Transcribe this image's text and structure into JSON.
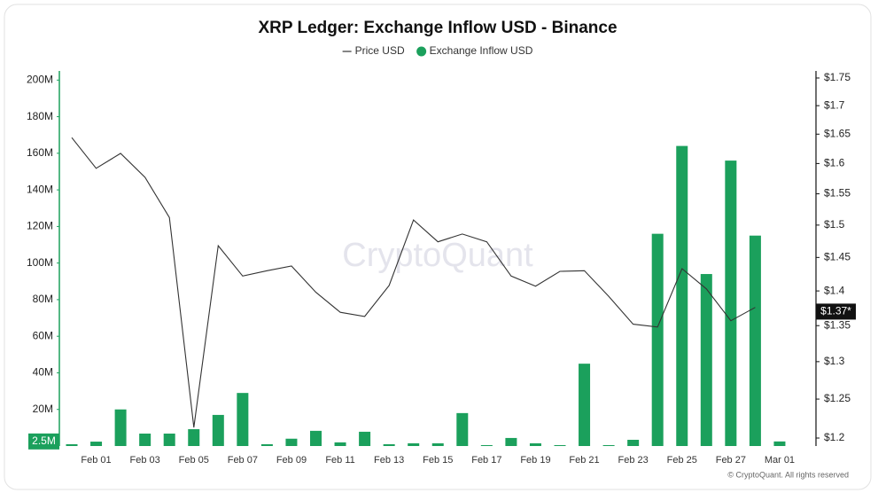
{
  "chart_data": {
    "type": "bar",
    "title": "XRP Ledger: Exchange Inflow USD - Binance",
    "watermark": "CryptoQuant",
    "footer": "© CryptoQuant. All rights reserved",
    "categories": [
      null,
      "Feb 01",
      null,
      "Feb 03",
      null,
      "Feb 05",
      null,
      "Feb 07",
      null,
      "Feb 09",
      null,
      "Feb 11",
      null,
      "Feb 13",
      null,
      "Feb 15",
      null,
      "Feb 17",
      null,
      "Feb 19",
      null,
      "Feb 21",
      null,
      "Feb 23",
      null,
      "Feb 25",
      null,
      "Feb 27",
      null,
      "Mar 01"
    ],
    "series": [
      {
        "name": "Price USD",
        "type": "line",
        "axis": "y2",
        "color": "#333333",
        "values": [
          1.644,
          1.592,
          1.617,
          1.577,
          1.512,
          1.2135,
          1.468,
          1.422,
          1.43,
          1.437,
          1.398,
          1.369,
          1.363,
          1.408,
          1.508,
          1.474,
          1.486,
          1.474,
          1.422,
          1.407,
          1.429,
          1.43,
          1.392,
          1.352,
          1.348,
          1.433,
          1.403,
          1.357,
          1.376,
          null
        ]
      },
      {
        "name": "Exchange Inflow USD",
        "type": "bar",
        "color": "#1ba05c",
        "values": [
          1000000,
          2400000,
          20000000,
          6800000,
          6800000,
          9200000,
          17000000,
          29000000,
          1000000,
          4000000,
          8300000,
          2000000,
          7800000,
          1000000,
          1500000,
          1500000,
          18000000,
          500000,
          4400000,
          1500000,
          500000,
          45000000,
          500000,
          3400000,
          116000000,
          164000000,
          94000000,
          156000000,
          115000000,
          2500000
        ]
      }
    ],
    "ylim": [
      0,
      205000000
    ],
    "yticks": [
      {
        "value": 20000000,
        "label": "20M"
      },
      {
        "value": 40000000,
        "label": "40M"
      },
      {
        "value": 60000000,
        "label": "60M"
      },
      {
        "value": 80000000,
        "label": "80M"
      },
      {
        "value": 100000000,
        "label": "100M"
      },
      {
        "value": 120000000,
        "label": "120M"
      },
      {
        "value": 140000000,
        "label": "140M"
      },
      {
        "value": 160000000,
        "label": "160M"
      },
      {
        "value": 180000000,
        "label": "180M"
      },
      {
        "value": 200000000,
        "label": "200M"
      }
    ],
    "y2scale": "log",
    "y2lim": [
      1.19,
      1.763
    ],
    "y2ticks": [
      {
        "value": 1.2,
        "label": "$1.2"
      },
      {
        "value": 1.25,
        "label": "$1.25"
      },
      {
        "value": 1.3,
        "label": "$1.3"
      },
      {
        "value": 1.35,
        "label": "$1.35"
      },
      {
        "value": 1.4,
        "label": "$1.4"
      },
      {
        "value": 1.45,
        "label": "$1.45"
      },
      {
        "value": 1.5,
        "label": "$1.5"
      },
      {
        "value": 1.55,
        "label": "$1.55"
      },
      {
        "value": 1.6,
        "label": "$1.6"
      },
      {
        "value": 1.65,
        "label": "$1.65"
      },
      {
        "value": 1.7,
        "label": "$1.7"
      },
      {
        "value": 1.75,
        "label": "$1.75"
      }
    ],
    "y_current": {
      "value": 2500000,
      "label": "2.5M"
    },
    "y2_current": {
      "value": 1.37,
      "label": "$1.37*"
    }
  }
}
